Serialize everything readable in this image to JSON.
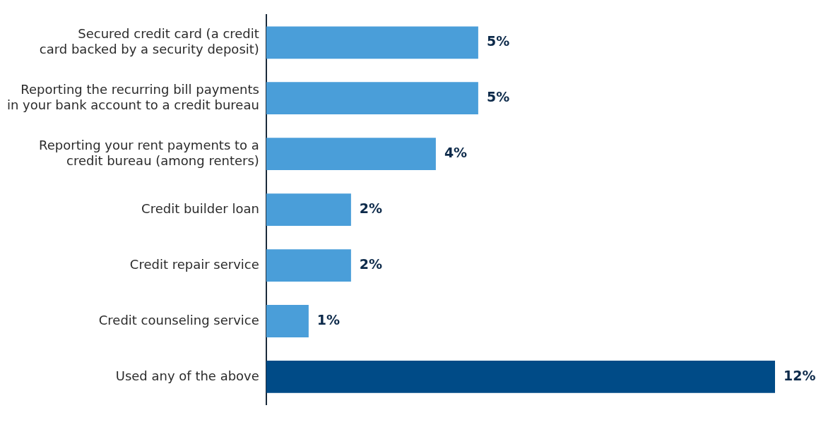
{
  "chart_data": {
    "type": "bar",
    "orientation": "horizontal",
    "categories": [
      "Secured credit card (a credit\ncard backed by a security deposit)",
      "Reporting the recurring bill payments\nin your bank account to a credit bureau",
      "Reporting your rent payments to a\ncredit bureau (among renters)",
      "Credit builder loan",
      "Credit repair service",
      "Credit counseling service",
      "Used any of the above"
    ],
    "values": [
      5,
      5,
      4,
      2,
      2,
      1,
      12
    ],
    "colors": [
      "#4a9ed9",
      "#4a9ed9",
      "#4a9ed9",
      "#4a9ed9",
      "#4a9ed9",
      "#4a9ed9",
      "#004b87"
    ],
    "value_labels": [
      "5%",
      "5%",
      "4%",
      "2%",
      "2%",
      "1%",
      "12%"
    ],
    "legend": false
  }
}
